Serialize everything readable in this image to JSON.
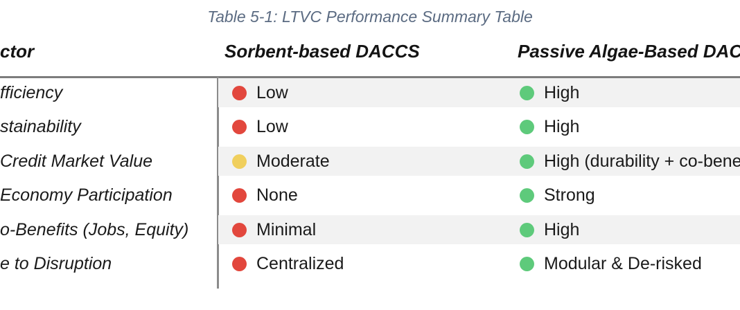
{
  "caption": "Table 5-1: LTVC Performance Summary Table",
  "columns": [
    "ctor",
    "Sorbent-based DACCS",
    "Passive Algae-Based DAC"
  ],
  "rows": [
    {
      "factor": "fficiency",
      "sorbent": {
        "status": "red",
        "label": "Low"
      },
      "algae": {
        "status": "green",
        "label": "High"
      }
    },
    {
      "factor": "stainability",
      "sorbent": {
        "status": "red",
        "label": "Low"
      },
      "algae": {
        "status": "green",
        "label": "High"
      }
    },
    {
      "factor": "Credit Market Value",
      "sorbent": {
        "status": "yellow",
        "label": "Moderate"
      },
      "algae": {
        "status": "green",
        "label": "High (durability + co-bene"
      }
    },
    {
      "factor": "Economy Participation",
      "sorbent": {
        "status": "red",
        "label": "None"
      },
      "algae": {
        "status": "green",
        "label": "Strong"
      }
    },
    {
      "factor": "o-Benefits (Jobs, Equity)",
      "sorbent": {
        "status": "red",
        "label": "Minimal"
      },
      "algae": {
        "status": "green",
        "label": "High"
      }
    },
    {
      "factor": "e to Disruption",
      "sorbent": {
        "status": "red",
        "label": "Centralized"
      },
      "algae": {
        "status": "green",
        "label": "Modular & De-risked"
      }
    }
  ],
  "colors": {
    "red": "#e2473d",
    "yellow": "#f0cf5d",
    "green": "#5eca7b",
    "stripe": "#f2f2f2",
    "caption_text": "#5b6b82",
    "header_rule": "#7c7c7c",
    "column_divider": "#8b8b8b",
    "body_text": "#1a1a1a"
  }
}
